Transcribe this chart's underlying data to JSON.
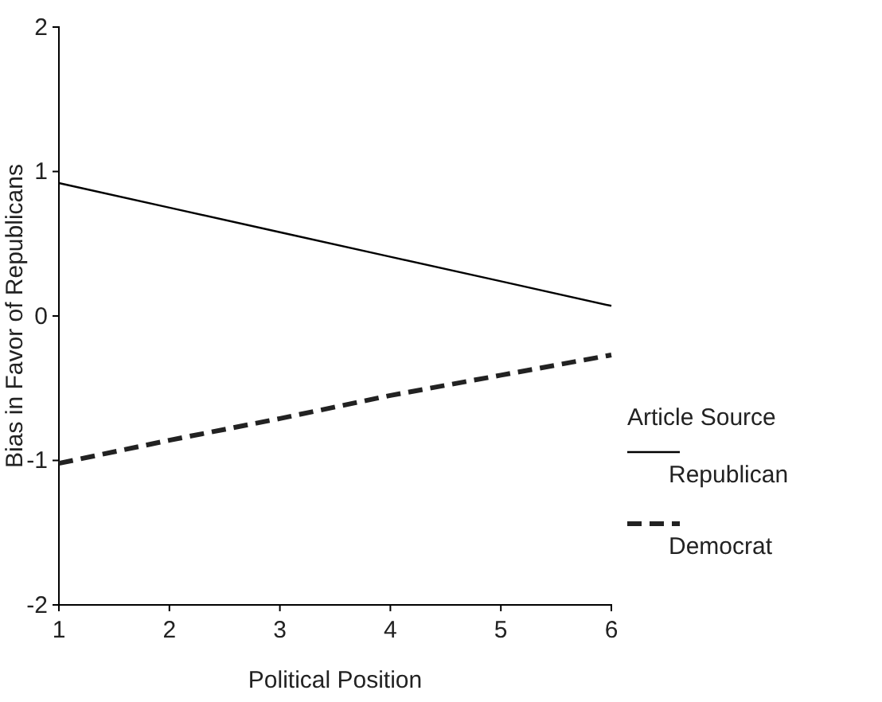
{
  "chart_data": {
    "type": "line",
    "xlabel": "Political Position",
    "ylabel": "Bias in Favor of Republicans",
    "legend_title": "Article Source",
    "x": [
      1,
      2,
      3,
      4,
      5,
      6
    ],
    "xlim": [
      1,
      6
    ],
    "xticks": [
      1,
      2,
      3,
      4,
      5,
      6
    ],
    "ylim": [
      -2,
      2
    ],
    "yticks": [
      -2,
      -1,
      0,
      1,
      2
    ],
    "series": [
      {
        "name": "Republican",
        "color": "#000000",
        "line_style": "solid",
        "values": [
          0.92,
          0.75,
          0.58,
          0.41,
          0.24,
          0.07
        ]
      },
      {
        "name": "Democrat",
        "color": "#222222",
        "line_style": "dashed",
        "values": [
          -1.02,
          -0.86,
          -0.71,
          -0.55,
          -0.41,
          -0.27
        ]
      }
    ],
    "legend": "right",
    "grid": false,
    "marker": "none"
  }
}
